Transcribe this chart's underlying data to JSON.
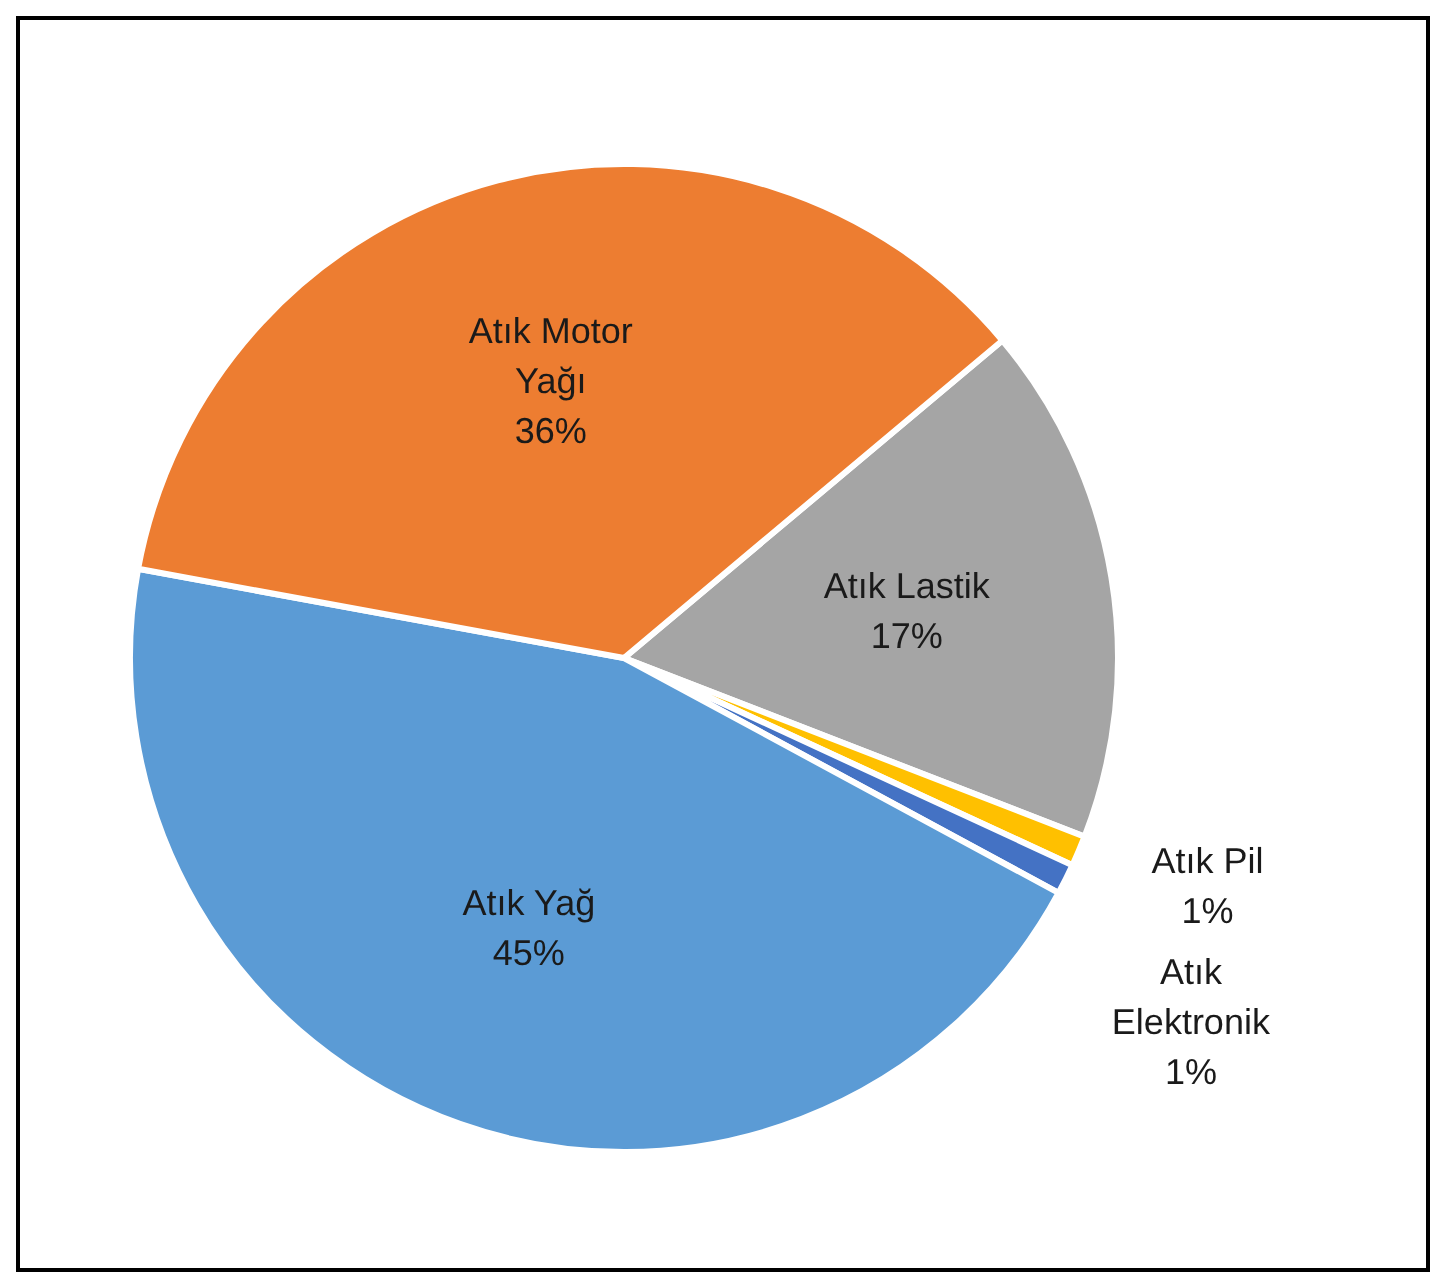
{
  "chart_data": {
    "type": "pie",
    "categories": [
      "Atık Lastik",
      "Atık Pil",
      "Atık Elektronik",
      "Atık Yağ",
      "Atık Motor Yağı"
    ],
    "values": [
      17,
      1,
      1,
      45,
      36
    ],
    "value_labels": [
      "17%",
      "1%",
      "1%",
      "45%",
      "36%"
    ],
    "colors": [
      "#a5a5a5",
      "#ffc000",
      "#4472c4",
      "#5b9bd5",
      "#ed7d31"
    ],
    "legend": false
  }
}
